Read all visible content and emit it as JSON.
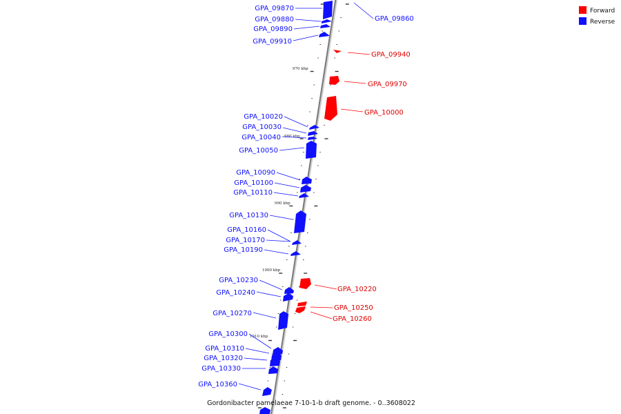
{
  "colors": {
    "forward": "#ff0000",
    "reverse": "#1010ff",
    "axis": "#888888"
  },
  "legend": {
    "forward_label": "Forward",
    "reverse_label": "Reverse"
  },
  "caption": "Gordonibacter pamelaeae 7-10-1-b draft genome. - 0..3608022",
  "scale_labels": [
    "970 kbp",
    "980 kbp",
    "990 kbp",
    "1000 kbp",
    "1010 kbp"
  ],
  "genes": {
    "reverse": [
      "GPA_09870",
      "GPA_09880",
      "GPA_09890",
      "GPA_09910",
      "GPA_10020",
      "GPA_10030",
      "GPA_10040",
      "GPA_10050",
      "GPA_10090",
      "GPA_10100",
      "GPA_10110",
      "GPA_10130",
      "GPA_10160",
      "GPA_10170",
      "GPA_10190",
      "GPA_10230",
      "GPA_10240",
      "GPA_10270",
      "GPA_10300",
      "GPA_10310",
      "GPA_10320",
      "GPA_10330",
      "GPA_10360",
      "GPA_09860"
    ],
    "forward": [
      "GPA_09940",
      "GPA_09970",
      "GPA_10000",
      "GPA_10220",
      "GPA_10250",
      "GPA_10260"
    ]
  }
}
